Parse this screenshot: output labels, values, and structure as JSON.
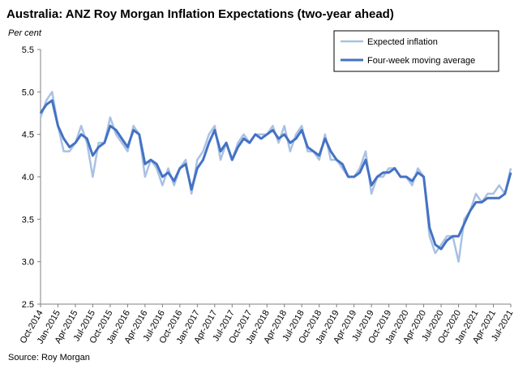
{
  "chart_data": {
    "type": "line",
    "title": "Australia: ANZ Roy Morgan Inflation Expectations (two-year ahead)",
    "y_label": "Per cent",
    "source": "Source: Roy Morgan",
    "categories": [
      "Oct-2014",
      null,
      null,
      "Jan-2015",
      null,
      null,
      "Apr-2015",
      null,
      null,
      "Jul-2015",
      null,
      null,
      "Oct-2015",
      null,
      null,
      "Jan-2016",
      null,
      null,
      "Apr-2016",
      null,
      null,
      "Jul-2016",
      null,
      null,
      "Oct-2016",
      null,
      null,
      "Jan-2017",
      null,
      null,
      "Apr-2017",
      null,
      null,
      "Jul-2017",
      null,
      null,
      "Oct-2017",
      null,
      null,
      "Jan-2018",
      null,
      null,
      "Apr-2018",
      null,
      null,
      "Jul-2018",
      null,
      null,
      "Oct-2018",
      null,
      null,
      "Jan-2019",
      null,
      null,
      "Apr-2019",
      null,
      null,
      "Jul-2019",
      null,
      null,
      "Oct-2019",
      null,
      null,
      "Jan-2020",
      null,
      null,
      "Apr-2020",
      null,
      null,
      "Jul-2020",
      null,
      null,
      "Oct-2020",
      null,
      null,
      "Jan-2021",
      null,
      null,
      "Apr-2021",
      null,
      null,
      "Jul-2021"
    ],
    "series": [
      {
        "name": "Expected inflation",
        "color": "#a9c1e3",
        "width": 2.5,
        "values": [
          4.7,
          4.9,
          5.0,
          4.6,
          4.3,
          4.3,
          4.4,
          4.6,
          4.4,
          4.0,
          4.4,
          4.4,
          4.7,
          4.5,
          4.4,
          4.3,
          4.6,
          4.5,
          4.0,
          4.2,
          4.1,
          3.9,
          4.1,
          3.9,
          4.1,
          4.2,
          3.8,
          4.2,
          4.3,
          4.5,
          4.6,
          4.2,
          4.4,
          4.2,
          4.4,
          4.5,
          4.4,
          4.5,
          4.5,
          4.5,
          4.6,
          4.4,
          4.6,
          4.3,
          4.5,
          4.6,
          4.3,
          4.3,
          4.2,
          4.5,
          4.2,
          4.2,
          4.1,
          4.0,
          4.0,
          4.1,
          4.3,
          3.8,
          4.0,
          4.0,
          4.1,
          4.1,
          4.0,
          4.0,
          3.9,
          4.1,
          4.0,
          3.3,
          3.1,
          3.2,
          3.3,
          3.3,
          3.0,
          3.5,
          3.6,
          3.8,
          3.7,
          3.8,
          3.8,
          3.9,
          3.8,
          4.1
        ]
      },
      {
        "name": "Four-week moving average",
        "color": "#4472c4",
        "width": 3,
        "values": [
          4.75,
          4.85,
          4.9,
          4.6,
          4.45,
          4.35,
          4.4,
          4.5,
          4.45,
          4.25,
          4.35,
          4.4,
          4.6,
          4.55,
          4.45,
          4.35,
          4.55,
          4.5,
          4.15,
          4.2,
          4.15,
          4.0,
          4.05,
          3.95,
          4.1,
          4.15,
          3.85,
          4.1,
          4.2,
          4.4,
          4.55,
          4.3,
          4.4,
          4.2,
          4.35,
          4.45,
          4.4,
          4.5,
          4.45,
          4.5,
          4.55,
          4.45,
          4.5,
          4.4,
          4.45,
          4.55,
          4.35,
          4.3,
          4.25,
          4.45,
          4.3,
          4.2,
          4.15,
          4.0,
          4.0,
          4.05,
          4.2,
          3.9,
          4.0,
          4.05,
          4.05,
          4.1,
          4.0,
          4.0,
          3.95,
          4.05,
          4.0,
          3.4,
          3.2,
          3.15,
          3.25,
          3.3,
          3.3,
          3.45,
          3.6,
          3.7,
          3.7,
          3.75,
          3.75,
          3.75,
          3.8,
          4.05
        ]
      }
    ],
    "ylim": [
      2.5,
      5.5
    ],
    "yticks": [
      2.5,
      {
        "value": 3,
        "label": "3.0"
      },
      3.5,
      {
        "value": 4,
        "label": "4.0"
      },
      4.5,
      {
        "value": 5,
        "label": "5.0"
      },
      5.5
    ],
    "grid": false,
    "legend": "top-right"
  }
}
